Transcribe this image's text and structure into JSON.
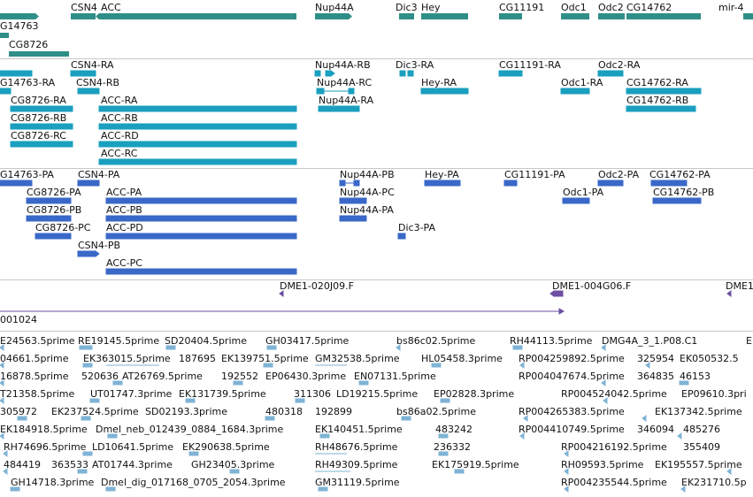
{
  "colors": {
    "gene": "#2f8f88",
    "transcript": "#1a9fbf",
    "protein": "#3a68c8",
    "clone": "#6d4fa3",
    "est": "#7fb3d5"
  },
  "gene_track": {
    "labels": [
      "CSN4",
      "ACC",
      "Nup44A",
      "Dic3",
      "Hey",
      "CG11191",
      "Odc1",
      "Odc2",
      "CG14762",
      "mir-4",
      "G14763",
      "CG8726"
    ]
  },
  "transcript_track": {
    "labels": [
      "CSN4-RA",
      "Nup44A-RB",
      "Dic3-RA",
      "CG11191-RA",
      "Odc2-RA",
      "G14763-RA",
      "CSN4-RB",
      "Nup44A-RC",
      "Hey-RA",
      "Odc1-RA",
      "CG14762-RA",
      "CG8726-RA",
      "ACC-RA",
      "Nup44A-RA",
      "CG14762-RB",
      "CG8726-RB",
      "ACC-RB",
      "CG8726-RC",
      "ACC-RD",
      "ACC-RC"
    ]
  },
  "protein_track": {
    "labels": [
      "G14763-PA",
      "CSN4-PA",
      "Nup44A-PB",
      "Hey-PA",
      "CG11191-PA",
      "Odc2-PA",
      "CG14762-PA",
      "CG8726-PA",
      "ACC-PA",
      "Nup44A-PC",
      "Odc1-PA",
      "CG14762-PB",
      "CG8726-PB",
      "ACC-PB",
      "Nup44A-PA",
      "CG8726-PC",
      "ACC-PD",
      "Dic3-PA",
      "CSN4-PB",
      "ACC-PC"
    ]
  },
  "clone_track": {
    "labels": [
      "DME1-020J09.F",
      "DME1-004G06.F",
      "DME1",
      "001024"
    ]
  },
  "est_track": {
    "rows": [
      [
        "E24563.5prime",
        "RE19145.5prime",
        "SD20404.5prime",
        "GH03417.5prime",
        "bs86c02.5prime",
        "RH44113.5prime",
        "DMG4A_3_1.P08.C1",
        "E"
      ],
      [
        "04661.5prime",
        "EK363015.5prime",
        "187695",
        "EK139751.5prime",
        "GM32538.5prime",
        "HL05458.3prime",
        "RP004259892.5prime",
        "325954",
        "EK050532.5"
      ],
      [
        "16878.5prime",
        "520636",
        "AT26769.5prime",
        "192552",
        "EP06430.3prime",
        "EN07131.5prime",
        "RP004047674.5prime",
        "364835",
        "46153"
      ],
      [
        "T21358.5prime",
        "UT01747.3prime",
        "EK131739.5prime",
        "311306",
        "LD19215.5prime",
        "EP02828.3prime",
        "RP004524042.5prime",
        "EP09610.3pri"
      ],
      [
        "305972",
        "EK237524.5prime",
        "SD02193.3prime",
        "480318",
        "192899",
        "bs86a02.5prime",
        "RP004265383.5prime",
        "EK137342.5prime"
      ],
      [
        "EK184918.5prime",
        "Dmel_neb_012439_0884_1684.3prime",
        "EK140451.5prime",
        "483242",
        "RP004410749.5prime",
        "346094",
        "485276"
      ],
      [
        "RH74696.5prime",
        "LD10641.5prime",
        "EK290638.5prime",
        "RH48676.5prime",
        "236332",
        "RP004216192.5prime",
        "355409"
      ],
      [
        "484419",
        "363533",
        "AT01744.3prime",
        "GH23405.3prime",
        "RH49309.5prime",
        "EK175919.5prime",
        "RH09593.5prime",
        "EK195557.5prime"
      ],
      [
        "GH14718.3prime",
        "Dmel_dig_017168_0705_2054.3prime",
        "GM31119.5prime",
        "RP004235544.5prime",
        "EK231710.5p"
      ]
    ]
  }
}
